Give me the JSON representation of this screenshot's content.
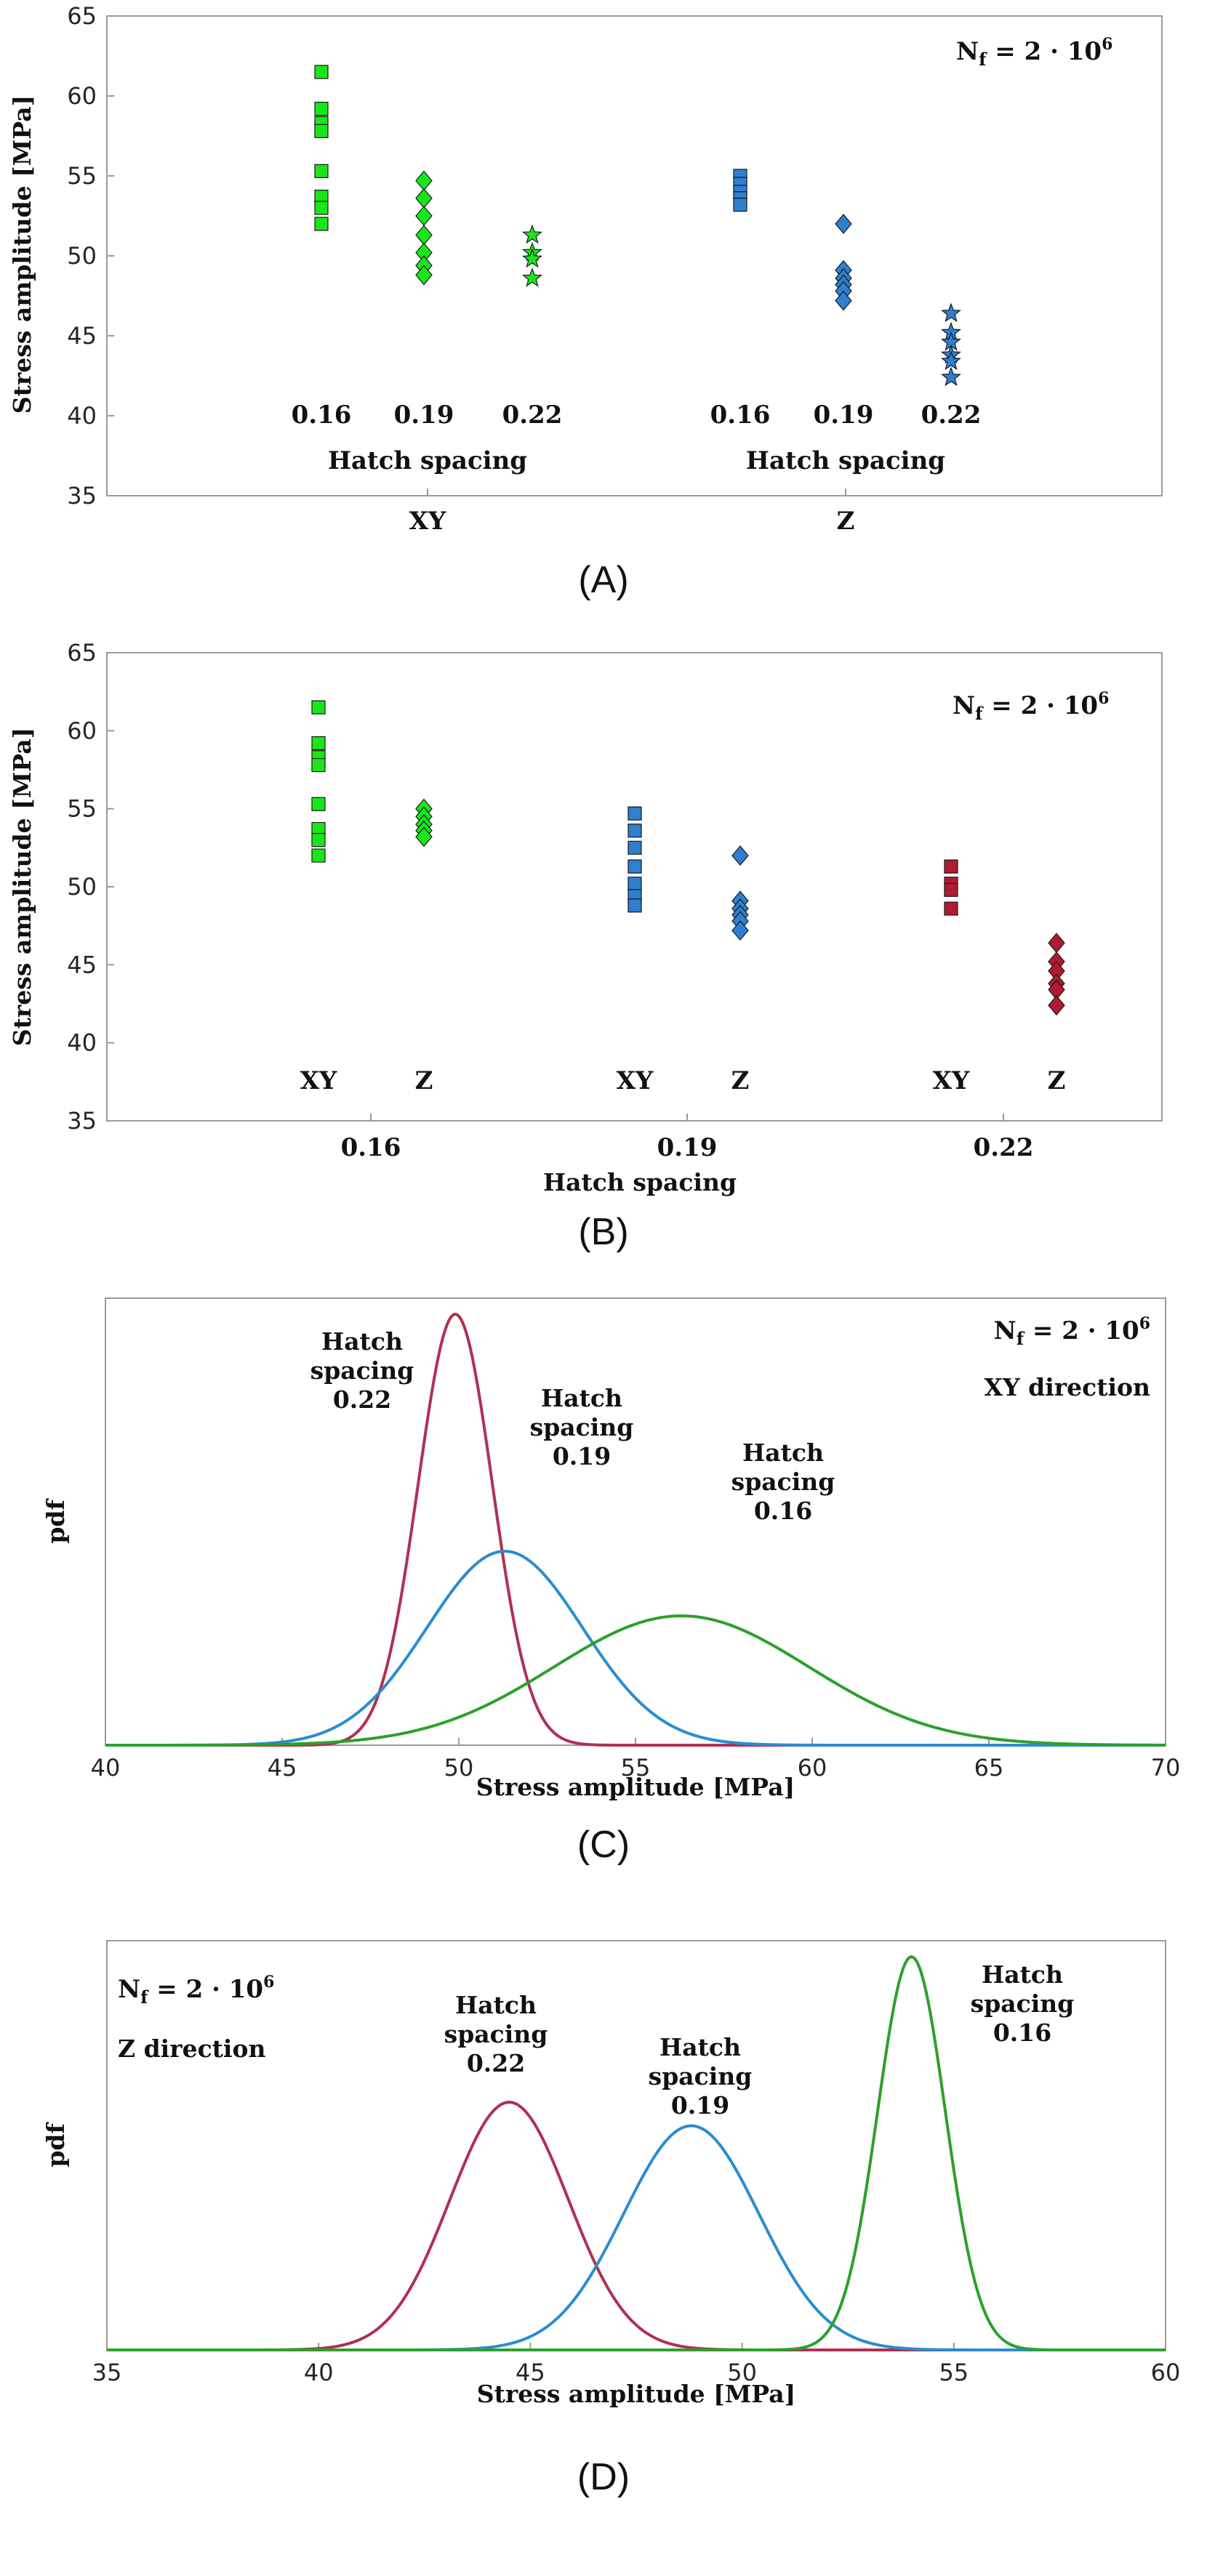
{
  "colors": {
    "green": "#19e619",
    "blue": "#2f7fd0",
    "red": "#b01a32",
    "pdf_green": "#2ca02c",
    "pdf_blue": "#2b8cd0",
    "pdf_red": "#b03050",
    "marker_edge": "#1a1a1a"
  },
  "chart_data": [
    {
      "panel": "(A)",
      "type": "scatter",
      "annotation": {
        "base": "N_f = 2 · 10",
        "exp": "6"
      },
      "ylabel": "Stress amplitude [MPa]",
      "ylim": [
        35,
        65
      ],
      "yticks": [
        35,
        40,
        45,
        50,
        55,
        60,
        65
      ],
      "groups": [
        {
          "label": "XY",
          "sublabels": [
            "0.16",
            "0.19",
            "0.22"
          ],
          "subtitle": "Hatch spacing"
        },
        {
          "label": "Z",
          "sublabels": [
            "0.16",
            "0.19",
            "0.22"
          ],
          "subtitle": "Hatch spacing"
        }
      ],
      "series": [
        {
          "group": "XY",
          "hatch": "0.16",
          "marker": "square",
          "color": "green",
          "values": [
            61.5,
            59.2,
            58.3,
            57.8,
            55.3,
            53.7,
            53.0,
            52.0
          ]
        },
        {
          "group": "XY",
          "hatch": "0.19",
          "marker": "diamond",
          "color": "green",
          "values": [
            54.7,
            53.6,
            52.5,
            51.3,
            50.2,
            49.4,
            48.8
          ]
        },
        {
          "group": "XY",
          "hatch": "0.22",
          "marker": "star",
          "color": "green",
          "values": [
            51.3,
            50.2,
            49.8,
            48.6
          ]
        },
        {
          "group": "Z",
          "hatch": "0.16",
          "marker": "square",
          "color": "blue",
          "values": [
            55.0,
            54.5,
            54.0,
            53.6,
            53.2
          ]
        },
        {
          "group": "Z",
          "hatch": "0.19",
          "marker": "diamond",
          "color": "blue",
          "values": [
            52.0,
            49.1,
            48.6,
            48.2,
            47.8,
            47.2
          ]
        },
        {
          "group": "Z",
          "hatch": "0.22",
          "marker": "star",
          "color": "blue",
          "values": [
            46.4,
            45.2,
            44.6,
            43.8,
            43.4,
            42.4
          ]
        }
      ]
    },
    {
      "panel": "(B)",
      "type": "scatter",
      "annotation": {
        "base": "N_f = 2 · 10",
        "exp": "6"
      },
      "ylabel": "Stress amplitude [MPa]",
      "xlabel": "Hatch spacing",
      "ylim": [
        35,
        65
      ],
      "yticks": [
        35,
        40,
        45,
        50,
        55,
        60,
        65
      ],
      "groups": [
        {
          "label": "0.16",
          "sublabels": [
            "XY",
            "Z"
          ]
        },
        {
          "label": "0.19",
          "sublabels": [
            "XY",
            "Z"
          ]
        },
        {
          "label": "0.22",
          "sublabels": [
            "XY",
            "Z"
          ]
        }
      ],
      "series": [
        {
          "group": "0.16",
          "direction": "XY",
          "marker": "square",
          "color": "green",
          "values": [
            61.5,
            59.2,
            58.3,
            57.8,
            55.3,
            53.7,
            53.0,
            52.0
          ]
        },
        {
          "group": "0.16",
          "direction": "Z",
          "marker": "diamond",
          "color": "green",
          "values": [
            55.0,
            54.5,
            54.0,
            53.6,
            53.2
          ]
        },
        {
          "group": "0.19",
          "direction": "XY",
          "marker": "square",
          "color": "blue",
          "values": [
            54.7,
            53.6,
            52.5,
            51.3,
            50.2,
            49.4,
            48.8
          ]
        },
        {
          "group": "0.19",
          "direction": "Z",
          "marker": "diamond",
          "color": "blue",
          "values": [
            52.0,
            49.1,
            48.6,
            48.2,
            47.8,
            47.2
          ]
        },
        {
          "group": "0.22",
          "direction": "XY",
          "marker": "square",
          "color": "red",
          "values": [
            51.3,
            50.2,
            49.8,
            48.6
          ]
        },
        {
          "group": "0.22",
          "direction": "Z",
          "marker": "diamond",
          "color": "red",
          "values": [
            46.4,
            45.2,
            44.6,
            43.8,
            43.4,
            42.4
          ]
        }
      ]
    },
    {
      "panel": "(C)",
      "type": "line",
      "annotation": {
        "base": "N_f = 2 · 10",
        "exp": "6"
      },
      "subannotation": "XY direction",
      "ylabel": "pdf",
      "xlabel": "Stress amplitude [MPa]",
      "xlim": [
        40,
        70
      ],
      "xticks": [
        40,
        45,
        50,
        55,
        60,
        65,
        70
      ],
      "series": [
        {
          "label_lines": [
            "Hatch",
            "spacing",
            "0.22"
          ],
          "color": "pdf_red",
          "mean": 49.9,
          "sd": 1.05,
          "peak": 1.0
        },
        {
          "label_lines": [
            "Hatch",
            "spacing",
            "0.19"
          ],
          "color": "pdf_blue",
          "mean": 51.3,
          "sd": 2.2,
          "peak": 0.45
        },
        {
          "label_lines": [
            "Hatch",
            "spacing",
            "0.16"
          ],
          "color": "pdf_green",
          "mean": 56.3,
          "sd": 3.6,
          "peak": 0.3
        }
      ]
    },
    {
      "panel": "(D)",
      "type": "line",
      "annotation": {
        "base": "N_f = 2 · 10",
        "exp": "6"
      },
      "subannotation": "Z direction",
      "ylabel": "pdf",
      "xlabel": "Stress amplitude [MPa]",
      "xlim": [
        35,
        60
      ],
      "xticks": [
        35,
        40,
        45,
        50,
        55,
        60
      ],
      "series": [
        {
          "label_lines": [
            "Hatch",
            "spacing",
            "0.22"
          ],
          "color": "pdf_red",
          "mean": 44.5,
          "sd": 1.4,
          "peak": 0.63
        },
        {
          "label_lines": [
            "Hatch",
            "spacing",
            "0.19"
          ],
          "color": "pdf_blue",
          "mean": 48.8,
          "sd": 1.6,
          "peak": 0.57
        },
        {
          "label_lines": [
            "Hatch",
            "spacing",
            "0.16"
          ],
          "color": "pdf_green",
          "mean": 54.0,
          "sd": 0.8,
          "peak": 1.0
        }
      ]
    }
  ]
}
